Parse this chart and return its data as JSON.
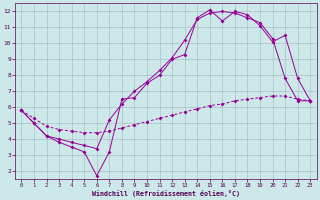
{
  "xlabel": "Windchill (Refroidissement éolien,°C)",
  "xlim": [
    -0.5,
    23.5
  ],
  "ylim": [
    1.5,
    12.5
  ],
  "xticks": [
    0,
    1,
    2,
    3,
    4,
    5,
    6,
    7,
    8,
    9,
    10,
    11,
    12,
    13,
    14,
    15,
    16,
    17,
    18,
    19,
    20,
    21,
    22,
    23
  ],
  "yticks": [
    2,
    3,
    4,
    5,
    6,
    7,
    8,
    9,
    10,
    11,
    12
  ],
  "bg_color": "#cce8e8",
  "line_color": "#990099",
  "grid_color": "#99aabb",
  "line1_x": [
    0,
    1,
    2,
    3,
    4,
    5,
    6,
    7,
    8,
    9,
    10,
    11,
    12,
    13,
    14,
    15,
    16,
    17,
    18,
    19,
    20,
    21,
    22,
    23
  ],
  "line1_y": [
    5.8,
    5.0,
    4.2,
    3.8,
    3.5,
    3.2,
    1.7,
    3.2,
    6.5,
    6.6,
    7.5,
    8.0,
    9.0,
    9.3,
    11.6,
    12.1,
    11.4,
    12.0,
    11.8,
    11.1,
    10.1,
    10.5,
    7.8,
    6.4
  ],
  "line2_x": [
    0,
    1,
    2,
    3,
    4,
    5,
    6,
    7,
    8,
    9,
    10,
    11,
    12,
    13,
    14,
    15,
    16,
    17,
    18,
    19,
    20,
    21,
    22,
    23
  ],
  "line2_y": [
    5.8,
    5.0,
    4.2,
    4.0,
    3.8,
    3.6,
    3.4,
    5.2,
    6.2,
    7.0,
    7.6,
    8.3,
    9.1,
    10.2,
    11.5,
    11.9,
    12.0,
    11.9,
    11.6,
    11.3,
    10.3,
    7.8,
    6.4,
    6.4
  ],
  "line3_x": [
    0,
    1,
    2,
    3,
    4,
    5,
    6,
    7,
    8,
    9,
    10,
    11,
    12,
    13,
    14,
    15,
    16,
    17,
    18,
    19,
    20,
    21,
    22,
    23
  ],
  "line3_y": [
    5.8,
    5.3,
    4.8,
    4.6,
    4.5,
    4.4,
    4.4,
    4.5,
    4.7,
    4.9,
    5.1,
    5.3,
    5.5,
    5.7,
    5.9,
    6.1,
    6.2,
    6.4,
    6.5,
    6.6,
    6.7,
    6.7,
    6.5,
    6.4
  ]
}
